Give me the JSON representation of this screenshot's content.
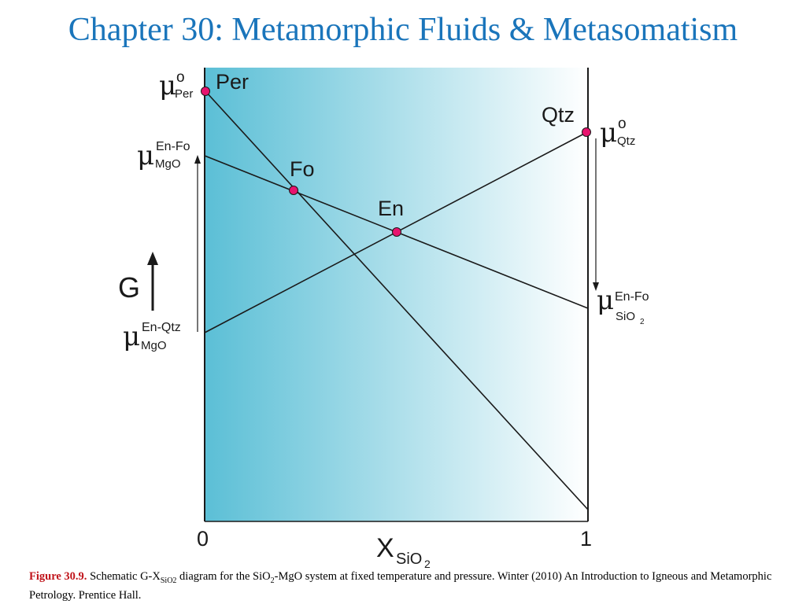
{
  "title": "Chapter 30: Metamorphic Fluids & Metasomatism",
  "diagram": {
    "points": {
      "per": "Per",
      "fo": "Fo",
      "en": "En",
      "qtz": "Qtz"
    },
    "y_axis_label": "G",
    "x_axis": {
      "base": "X",
      "subscript": "SiO",
      "subscript_index": "2",
      "tick_left": "0",
      "tick_right": "1"
    },
    "chem_potentials": {
      "mu_symbol": "μ",
      "per": {
        "sup": "o",
        "sub": "Per"
      },
      "qtz": {
        "sup": "o",
        "sub": "Qtz"
      },
      "mgo_en_fo": {
        "sup": "En-Fo",
        "sub": "MgO"
      },
      "mgo_en_qtz": {
        "sup": "En-Qtz",
        "sub": "MgO"
      },
      "sio2_en_fo": {
        "sup": "En-Fo",
        "sub": "SiO",
        "sub_index": "2"
      }
    },
    "colors": {
      "gradient_left": "#5bbfd6",
      "gradient_right": "#ffffff",
      "point_fill": "#e8136e",
      "line": "#1a1a1a"
    }
  },
  "caption": {
    "figure_label": "Figure 30.9.",
    "text_1": " Schematic G-X",
    "sub_1": "SiO2",
    "text_2": " diagram for the SiO",
    "sub_2": "2",
    "text_3": "-MgO system at fixed temperature and pressure. Winter (2010) An Introduction to Igneous and Metamorphic Petrology. Prentice Hall."
  }
}
